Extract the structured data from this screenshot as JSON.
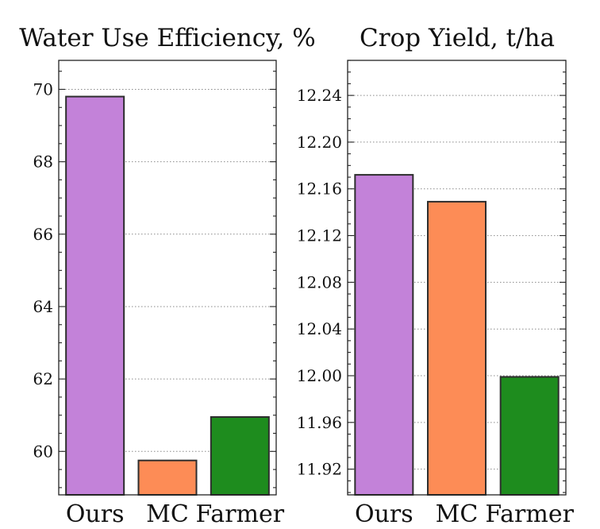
{
  "chart_data": [
    {
      "type": "bar",
      "title": "Water Use Efficiency, %",
      "categories": [
        "Ours",
        "MC",
        "Farmer"
      ],
      "values": [
        69.8,
        59.75,
        60.95
      ],
      "colors": [
        "#c382d9",
        "#fd8c56",
        "#1e8c1e"
      ],
      "yticks": [
        60,
        62,
        64,
        66,
        68,
        70
      ],
      "ytick_labels": [
        "60",
        "62",
        "64",
        "66",
        "68",
        "70"
      ],
      "ylim": [
        58.8,
        70.8
      ],
      "grid": true,
      "minor_ticks": true
    },
    {
      "type": "bar",
      "title": "Crop Yield, t/ha",
      "categories": [
        "Ours",
        "MC",
        "Farmer"
      ],
      "values": [
        12.172,
        12.149,
        11.999
      ],
      "colors": [
        "#c382d9",
        "#fd8c56",
        "#1e8c1e"
      ],
      "yticks": [
        11.92,
        11.96,
        12.0,
        12.04,
        12.08,
        12.12,
        12.16,
        12.2,
        12.24
      ],
      "ytick_labels": [
        "11.92",
        "11.96",
        "12.00",
        "12.04",
        "12.08",
        "12.12",
        "12.16",
        "12.20",
        "12.24"
      ],
      "ylim": [
        11.898,
        12.27
      ],
      "grid": true,
      "minor_ticks": true
    }
  ]
}
